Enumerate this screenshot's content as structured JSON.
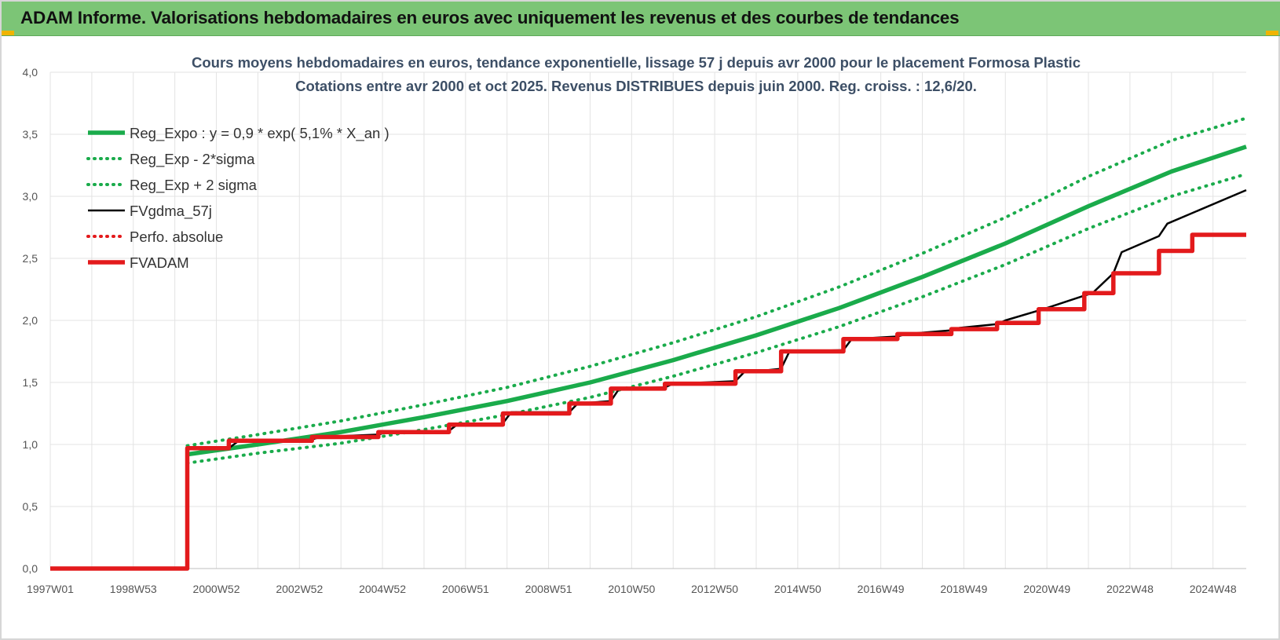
{
  "banner": {
    "title": "ADAM Informe. Valorisations hebdomadaires en euros avec uniquement les revenus et des courbes de tendances"
  },
  "chart_data": {
    "type": "line",
    "title_lines": [
      "Cours moyens hebdomadaires en euros, tendance exponentielle, lissage 57 j depuis avr 2000 pour le placement Formosa Plastic",
      "Cotations entre avr 2000 et oct 2025.  Revenus DISTRIBUES depuis juin 2000. Reg. croiss. : 12,6/20."
    ],
    "xlabel": "",
    "ylabel": "",
    "x_range": [
      1997.0,
      2025.8
    ],
    "ylim": [
      0,
      4
    ],
    "y_ticks": [
      "0,0",
      "0,5",
      "1,0",
      "1,5",
      "2,0",
      "2,5",
      "3,0",
      "3,5",
      "4,0"
    ],
    "y_tick_values": [
      0,
      0.5,
      1.0,
      1.5,
      2.0,
      2.5,
      3.0,
      3.5,
      4.0
    ],
    "x_tick_labels": [
      "1997W01",
      "1998W53",
      "2000W52",
      "2002W52",
      "2004W52",
      "2006W51",
      "2008W51",
      "2010W50",
      "2012W50",
      "2014W50",
      "2016W49",
      "2018W49",
      "2020W49",
      "2022W48",
      "2024W48"
    ],
    "x_tick_values": [
      1997.0,
      1999.0,
      2001.0,
      2003.0,
      2005.0,
      2007.0,
      2009.0,
      2011.0,
      2013.0,
      2015.0,
      2017.0,
      2019.0,
      2021.0,
      2023.0,
      2025.0
    ],
    "grid": true,
    "legend_position": "top-left",
    "series": [
      {
        "name": "Reg_Expo : y = 0,9 * exp( 5,1% *  X_an )",
        "style": "solid-thick",
        "color": "#1aab4b",
        "x": [
          2000.3,
          2002,
          2004,
          2006,
          2008,
          2010,
          2012,
          2014,
          2016,
          2018,
          2020,
          2022,
          2024,
          2025.8
        ],
        "y": [
          0.92,
          1.0,
          1.1,
          1.22,
          1.35,
          1.5,
          1.68,
          1.88,
          2.1,
          2.35,
          2.62,
          2.92,
          3.2,
          3.4
        ]
      },
      {
        "name": "Reg_Exp - 2*sigma",
        "style": "dotted",
        "color": "#1aab4b",
        "x": [
          2000.3,
          2002,
          2004,
          2006,
          2008,
          2010,
          2012,
          2014,
          2016,
          2018,
          2020,
          2022,
          2024,
          2025.8
        ],
        "y": [
          0.85,
          0.93,
          1.01,
          1.12,
          1.24,
          1.38,
          1.55,
          1.74,
          1.95,
          2.19,
          2.45,
          2.74,
          3.0,
          3.18
        ]
      },
      {
        "name": "Reg_Exp + 2 sigma",
        "style": "dotted",
        "color": "#1aab4b",
        "x": [
          2000.3,
          2002,
          2004,
          2006,
          2008,
          2010,
          2012,
          2014,
          2016,
          2018,
          2020,
          2022,
          2024,
          2025.8
        ],
        "y": [
          0.99,
          1.08,
          1.19,
          1.32,
          1.46,
          1.63,
          1.82,
          2.03,
          2.27,
          2.54,
          2.83,
          3.16,
          3.45,
          3.63
        ]
      },
      {
        "name": "FVgdma_57j",
        "style": "solid",
        "color": "#000000",
        "x": [
          1997.0,
          2000.3,
          2000.3,
          2000.6,
          2001.3,
          2001.5,
          2003.3,
          2003.5,
          2004.9,
          2005.1,
          2006.6,
          2006.8,
          2007.9,
          2008.1,
          2009.5,
          2009.7,
          2010.5,
          2010.7,
          2011.8,
          2012.0,
          2013.5,
          2013.7,
          2014.6,
          2014.8,
          2016.1,
          2016.3,
          2017.4,
          2017.6,
          2018.7,
          2018.9,
          2019.8,
          2020.0,
          2020.8,
          2021.0,
          2021.9,
          2022.1,
          2022.6,
          2022.8,
          2023.7,
          2023.9,
          2025.8
        ],
        "y": [
          0.0,
          0.0,
          0.96,
          0.97,
          0.97,
          1.02,
          1.04,
          1.06,
          1.08,
          1.1,
          1.11,
          1.16,
          1.17,
          1.26,
          1.26,
          1.33,
          1.35,
          1.45,
          1.46,
          1.49,
          1.51,
          1.58,
          1.61,
          1.75,
          1.76,
          1.85,
          1.87,
          1.89,
          1.92,
          1.94,
          1.97,
          2.0,
          2.08,
          2.1,
          2.2,
          2.22,
          2.38,
          2.55,
          2.68,
          2.78,
          3.05
        ]
      },
      {
        "name": "Perfo. absolue",
        "style": "dotted",
        "color": "#e31a1c",
        "x": [],
        "y": []
      },
      {
        "name": "FVADAM",
        "style": "solid-thick",
        "color": "#e31a1c",
        "x": [
          1997.0,
          2000.3,
          2000.3,
          2001.3,
          2001.3,
          2003.3,
          2003.3,
          2004.9,
          2004.9,
          2006.6,
          2006.6,
          2007.9,
          2007.9,
          2009.5,
          2009.5,
          2010.5,
          2010.5,
          2011.8,
          2011.8,
          2013.5,
          2013.5,
          2014.6,
          2014.6,
          2016.1,
          2016.1,
          2017.4,
          2017.4,
          2018.7,
          2018.7,
          2019.8,
          2019.8,
          2020.8,
          2020.8,
          2021.9,
          2021.9,
          2022.6,
          2022.6,
          2023.7,
          2023.7,
          2024.5,
          2024.5,
          2025.8
        ],
        "y": [
          0.0,
          0.0,
          0.97,
          0.97,
          1.03,
          1.03,
          1.06,
          1.06,
          1.1,
          1.1,
          1.16,
          1.16,
          1.25,
          1.25,
          1.33,
          1.33,
          1.45,
          1.45,
          1.49,
          1.49,
          1.59,
          1.59,
          1.75,
          1.75,
          1.85,
          1.85,
          1.89,
          1.89,
          1.93,
          1.93,
          1.98,
          1.98,
          2.09,
          2.09,
          2.22,
          2.22,
          2.38,
          2.38,
          2.56,
          2.56,
          2.69,
          2.69
        ]
      }
    ]
  },
  "colors": {
    "banner_bg": "#7cc576",
    "green": "#1aab4b",
    "red": "#e31a1c",
    "black": "#000000",
    "grid": "#e3e3e3"
  }
}
